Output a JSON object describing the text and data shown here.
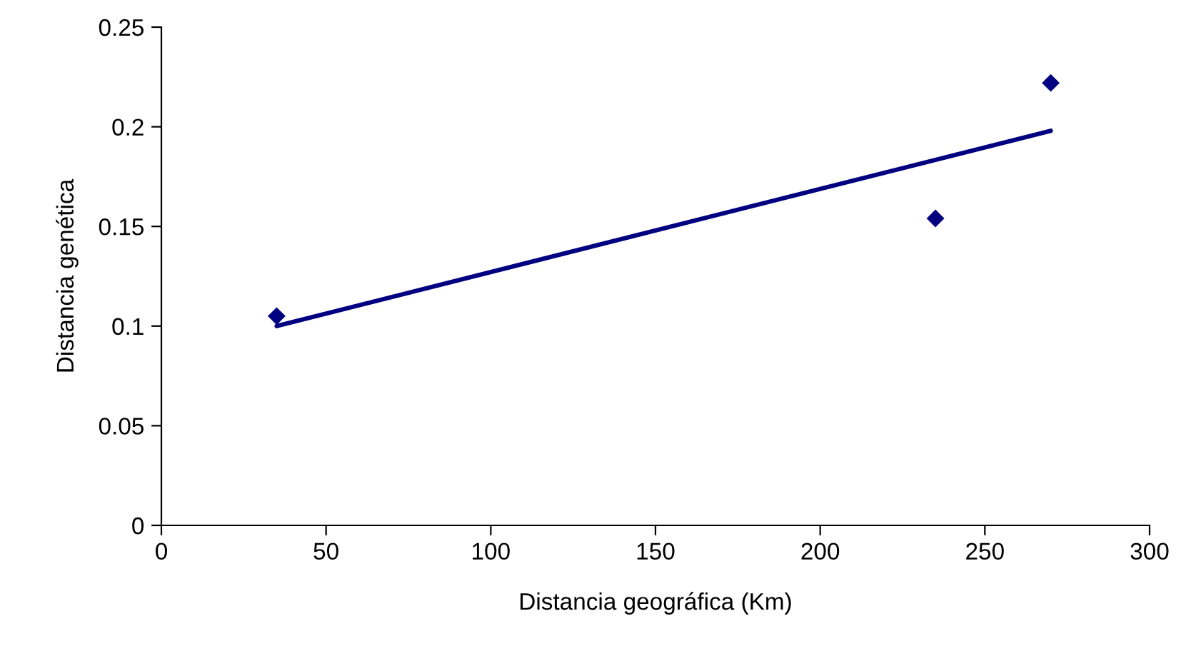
{
  "chart_data": {
    "type": "scatter",
    "xlabel": "Distancia geográfica (Km)",
    "ylabel": "Distancia genética",
    "series": [
      {
        "color": "#000080",
        "marker": "diamond",
        "x": [
          35,
          235,
          270
        ],
        "values": [
          0.105,
          0.154,
          0.222
        ]
      },
      {
        "type": "line",
        "color": "#000080",
        "marker": "none",
        "x": [
          35,
          270
        ],
        "values": [
          0.1,
          0.198
        ]
      }
    ],
    "xlim": [
      0,
      300
    ],
    "xticks": [
      0,
      50,
      100,
      150,
      200,
      250,
      300
    ],
    "ylim": [
      0,
      0.25
    ],
    "yticks": [
      0,
      0.05,
      0.1,
      0.15,
      0.2,
      0.25
    ],
    "grid": false,
    "legend": false
  }
}
